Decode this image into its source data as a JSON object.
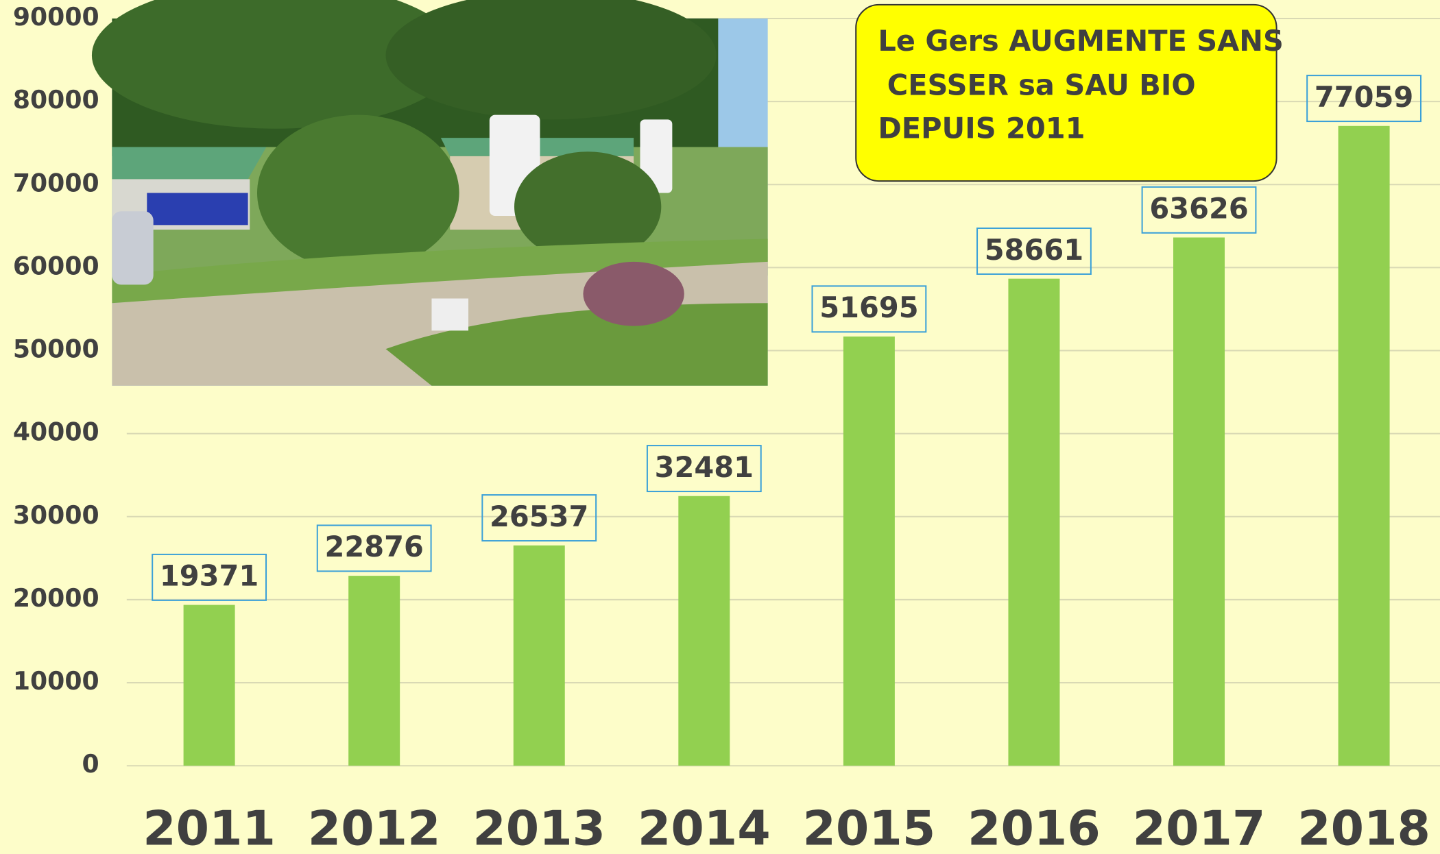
{
  "chart_data": {
    "type": "bar",
    "annotation": [
      "Le Gers AUGMENTE SANS",
      "CESSER sa SAU BIO",
      "DEPUIS 2011"
    ],
    "categories": [
      "2011",
      "2012",
      "2013",
      "2014",
      "2015",
      "2016",
      "2017",
      "2018"
    ],
    "values": [
      19371,
      22876,
      26537,
      32481,
      51695,
      58661,
      63626,
      77059
    ],
    "color": "#92d050",
    "ylim": [
      0,
      90000
    ],
    "yticks": [
      0,
      10000,
      20000,
      30000,
      40000,
      50000,
      60000,
      70000,
      80000,
      90000
    ],
    "grid": true
  }
}
